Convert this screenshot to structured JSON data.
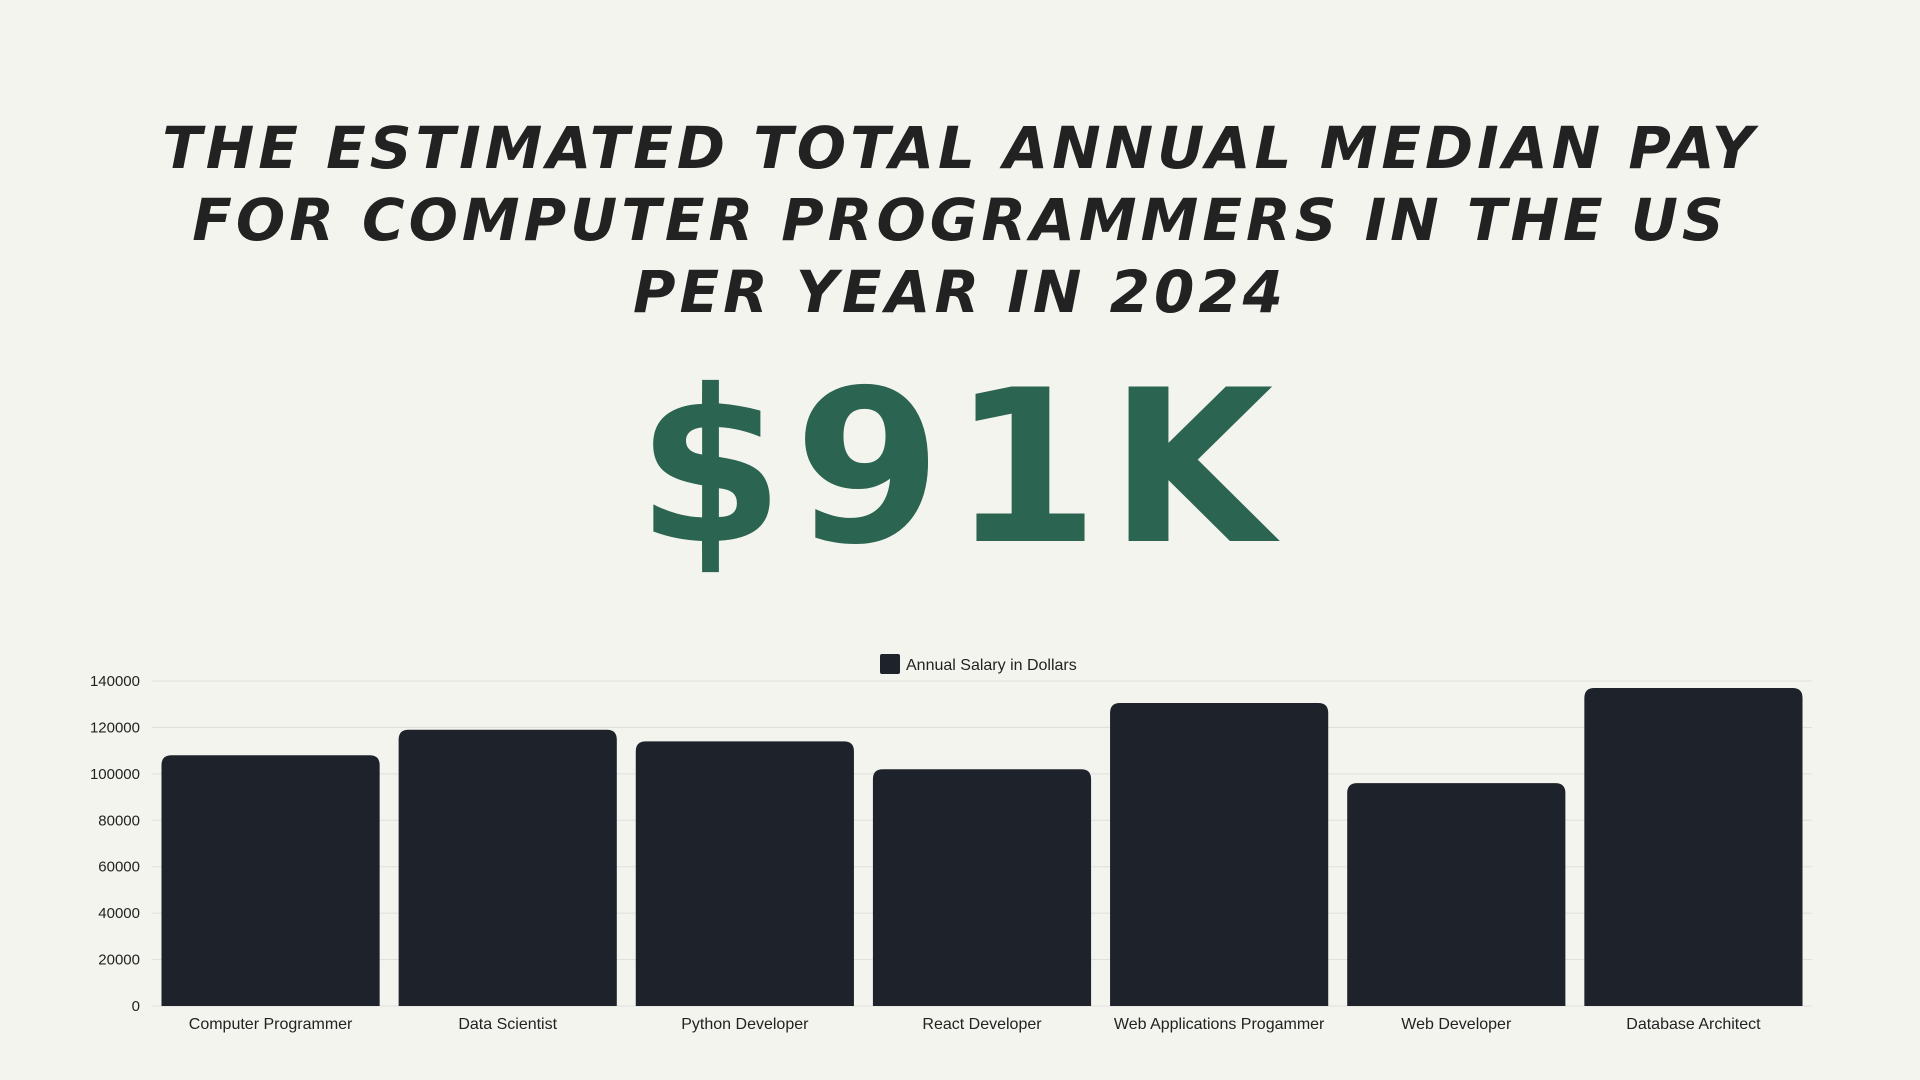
{
  "header": {
    "title_lines": [
      "THE ESTIMATED TOTAL ANNUAL MEDIAN PAY",
      "FOR COMPUTER PROGRAMMERS IN THE US",
      "PER YEAR IN 2024"
    ],
    "highlight_value": "$91K",
    "highlight_color": "#2b6450"
  },
  "chart_data": {
    "type": "bar",
    "categories": [
      "Computer Programmer",
      "Data Scientist",
      "Python Developer",
      "React Developer",
      "Web Applications Progammer",
      "Web Developer",
      "Database Architect"
    ],
    "series": [
      {
        "name": "Annual Salary in Dollars",
        "values": [
          108000,
          119000,
          114000,
          102000,
          130500,
          96000,
          137000
        ],
        "color": "#1e232b"
      }
    ],
    "ylim": [
      0,
      140000
    ],
    "yticks": [
      0,
      20000,
      40000,
      60000,
      80000,
      100000,
      120000,
      140000
    ],
    "grid": true,
    "legend": "top-center",
    "xlabel": "",
    "ylabel": ""
  }
}
